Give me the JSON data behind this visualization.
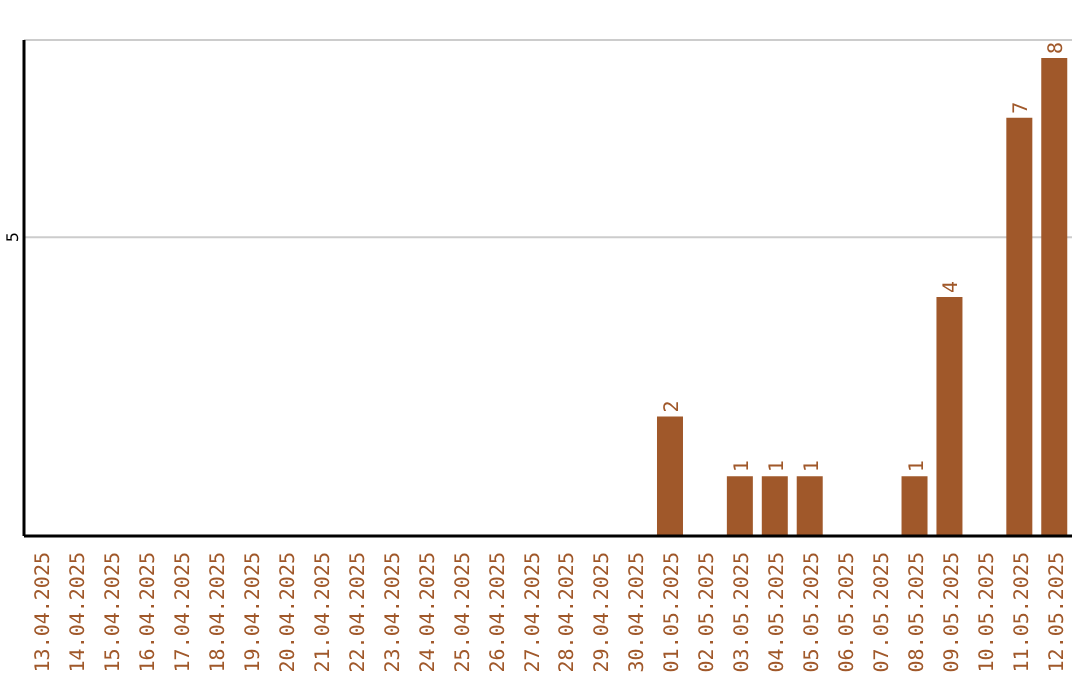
{
  "chart_data": {
    "type": "bar",
    "categories": [
      "13.04.2025",
      "14.04.2025",
      "15.04.2025",
      "16.04.2025",
      "17.04.2025",
      "18.04.2025",
      "19.04.2025",
      "20.04.2025",
      "21.04.2025",
      "22.04.2025",
      "23.04.2025",
      "24.04.2025",
      "25.04.2025",
      "26.04.2025",
      "27.04.2025",
      "28.04.2025",
      "29.04.2025",
      "30.04.2025",
      "01.05.2025",
      "02.05.2025",
      "03.05.2025",
      "04.05.2025",
      "05.05.2025",
      "06.05.2025",
      "07.05.2025",
      "08.05.2025",
      "09.05.2025",
      "10.05.2025",
      "11.05.2025",
      "12.05.2025"
    ],
    "values": [
      null,
      null,
      null,
      null,
      null,
      null,
      null,
      null,
      null,
      null,
      null,
      null,
      null,
      null,
      null,
      null,
      null,
      null,
      2,
      null,
      1,
      1,
      1,
      null,
      null,
      1,
      4,
      null,
      7,
      8
    ],
    "data_labels": true,
    "color": "#a0582a",
    "ylim": [
      0,
      8.3
    ],
    "yticks": [
      {
        "value": 0,
        "label": null
      },
      5
    ],
    "grid": "y"
  }
}
